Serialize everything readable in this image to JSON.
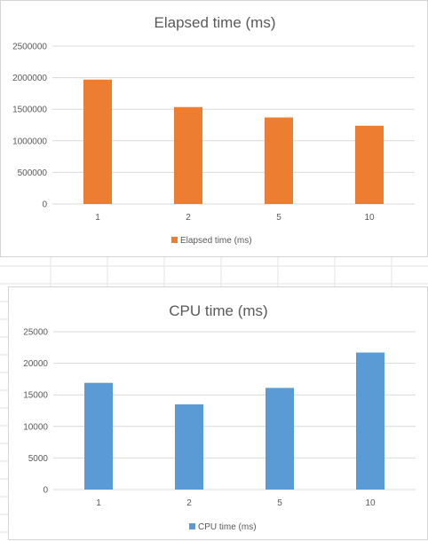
{
  "sheet": {
    "grid_color": "#e3e3e3"
  },
  "chart_data": [
    {
      "type": "bar",
      "title": "Elapsed time (ms)",
      "categories": [
        "1",
        "2",
        "5",
        "10"
      ],
      "series": [
        {
          "name": "Elapsed time (ms)",
          "values": [
            1970000,
            1535000,
            1370000,
            1240000
          ],
          "color": "#ED7D31"
        }
      ],
      "yticks": [
        "0",
        "500000",
        "1000000",
        "1500000",
        "2000000",
        "2500000"
      ],
      "ylim": [
        0,
        2500000
      ],
      "xlabel": "",
      "ylabel": "",
      "grid": true,
      "legend": "bottom"
    },
    {
      "type": "bar",
      "title": "CPU time (ms)",
      "categories": [
        "1",
        "2",
        "5",
        "10"
      ],
      "series": [
        {
          "name": "CPU time (ms)",
          "values": [
            16900,
            13500,
            16100,
            21700
          ],
          "color": "#5B9BD5"
        }
      ],
      "yticks": [
        "0",
        "5000",
        "10000",
        "15000",
        "20000",
        "25000"
      ],
      "ylim": [
        0,
        25000
      ],
      "xlabel": "",
      "ylabel": "",
      "grid": true,
      "legend": "bottom"
    }
  ]
}
